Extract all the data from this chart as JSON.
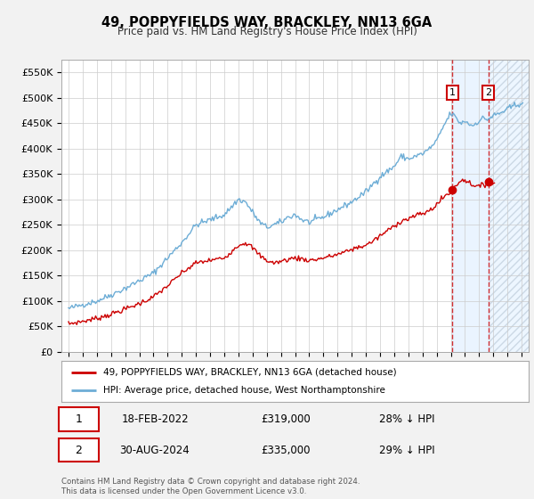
{
  "title": "49, POPPYFIELDS WAY, BRACKLEY, NN13 6GA",
  "subtitle": "Price paid vs. HM Land Registry's House Price Index (HPI)",
  "ylim": [
    0,
    575000
  ],
  "yticks": [
    0,
    50000,
    100000,
    150000,
    200000,
    250000,
    300000,
    350000,
    400000,
    450000,
    500000,
    550000
  ],
  "ytick_labels": [
    "£0",
    "£50K",
    "£100K",
    "£150K",
    "£200K",
    "£250K",
    "£300K",
    "£350K",
    "£400K",
    "£450K",
    "£500K",
    "£550K"
  ],
  "hpi_color": "#6dadd6",
  "price_color": "#cc0000",
  "bg_color": "#f2f2f2",
  "plot_bg": "#ffffff",
  "grid_color": "#cccccc",
  "purchase1_date": "18-FEB-2022",
  "purchase1_price": 319000,
  "purchase1_hpi_pct": "28% ↓ HPI",
  "purchase2_date": "30-AUG-2024",
  "purchase2_price": 335000,
  "purchase2_hpi_pct": "29% ↓ HPI",
  "legend1": "49, POPPYFIELDS WAY, BRACKLEY, NN13 6GA (detached house)",
  "legend2": "HPI: Average price, detached house, West Northamptonshire",
  "footer1": "Contains HM Land Registry data © Crown copyright and database right 2024.",
  "footer2": "This data is licensed under the Open Government Licence v3.0.",
  "purchase1_x": 2022.12,
  "purchase2_x": 2024.66,
  "purchase1_y": 319000,
  "purchase2_y": 335000,
  "vline_x1": 2022.12,
  "vline_x2": 2024.66,
  "shade_start": 2022.12,
  "shade_mid": 2024.66,
  "shade_end": 2027.5,
  "xmin": 1994.5,
  "xmax": 2027.5
}
